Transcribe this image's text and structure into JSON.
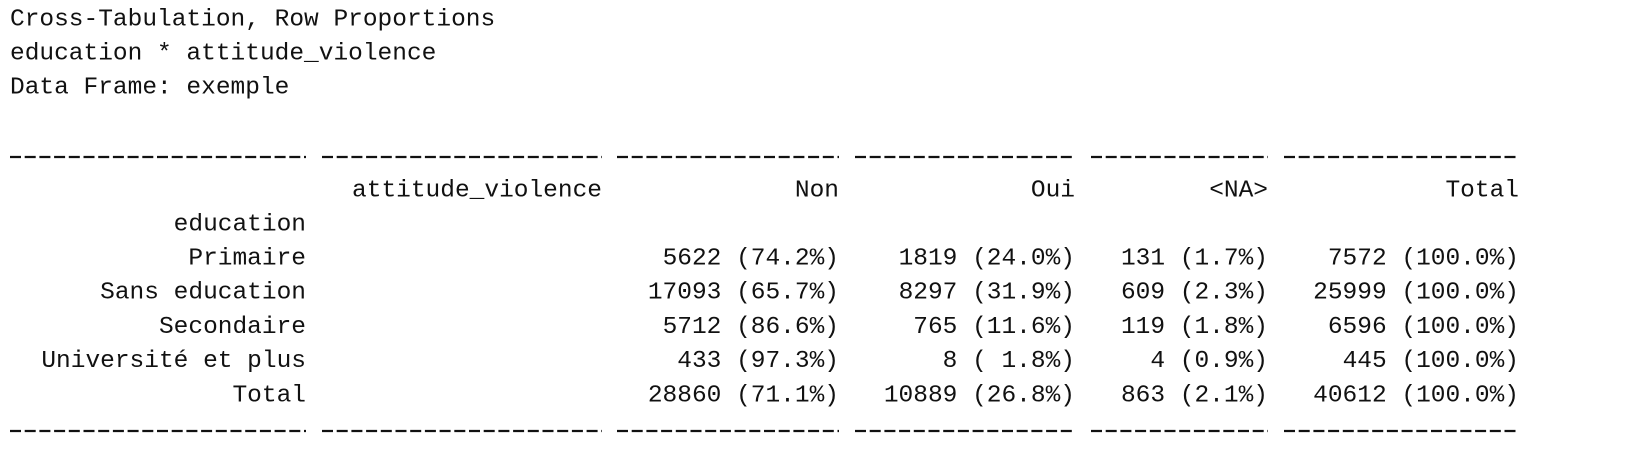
{
  "header": {
    "title": "Cross-Tabulation, Row Proportions",
    "variables": "education * attitude_violence",
    "data_frame": "Data Frame: exemple"
  },
  "table": {
    "columns": [
      "attitude_violence",
      "Non",
      "Oui",
      "<NA>",
      "Total"
    ],
    "row_variable": "education",
    "rows": [
      [
        "Primaire",
        "5622 (74.2%)",
        "1819 (24.0%)",
        "131 (1.7%)",
        "7572 (100.0%)"
      ],
      [
        "Sans education",
        "17093 (65.7%)",
        "8297 (31.9%)",
        "609 (2.3%)",
        "25999 (100.0%)"
      ],
      [
        "Secondaire",
        "5712 (86.6%)",
        "765 (11.6%)",
        "119 (1.8%)",
        "6596 (100.0%)"
      ],
      [
        "Université et plus",
        "433 (97.3%)",
        "8 ( 1.8%)",
        "4 (0.9%)",
        "445 (100.0%)"
      ],
      [
        "Total",
        "28860 (71.1%)",
        "10889 (26.8%)",
        "863 (2.1%)",
        "40612 (100.0%)"
      ]
    ]
  }
}
